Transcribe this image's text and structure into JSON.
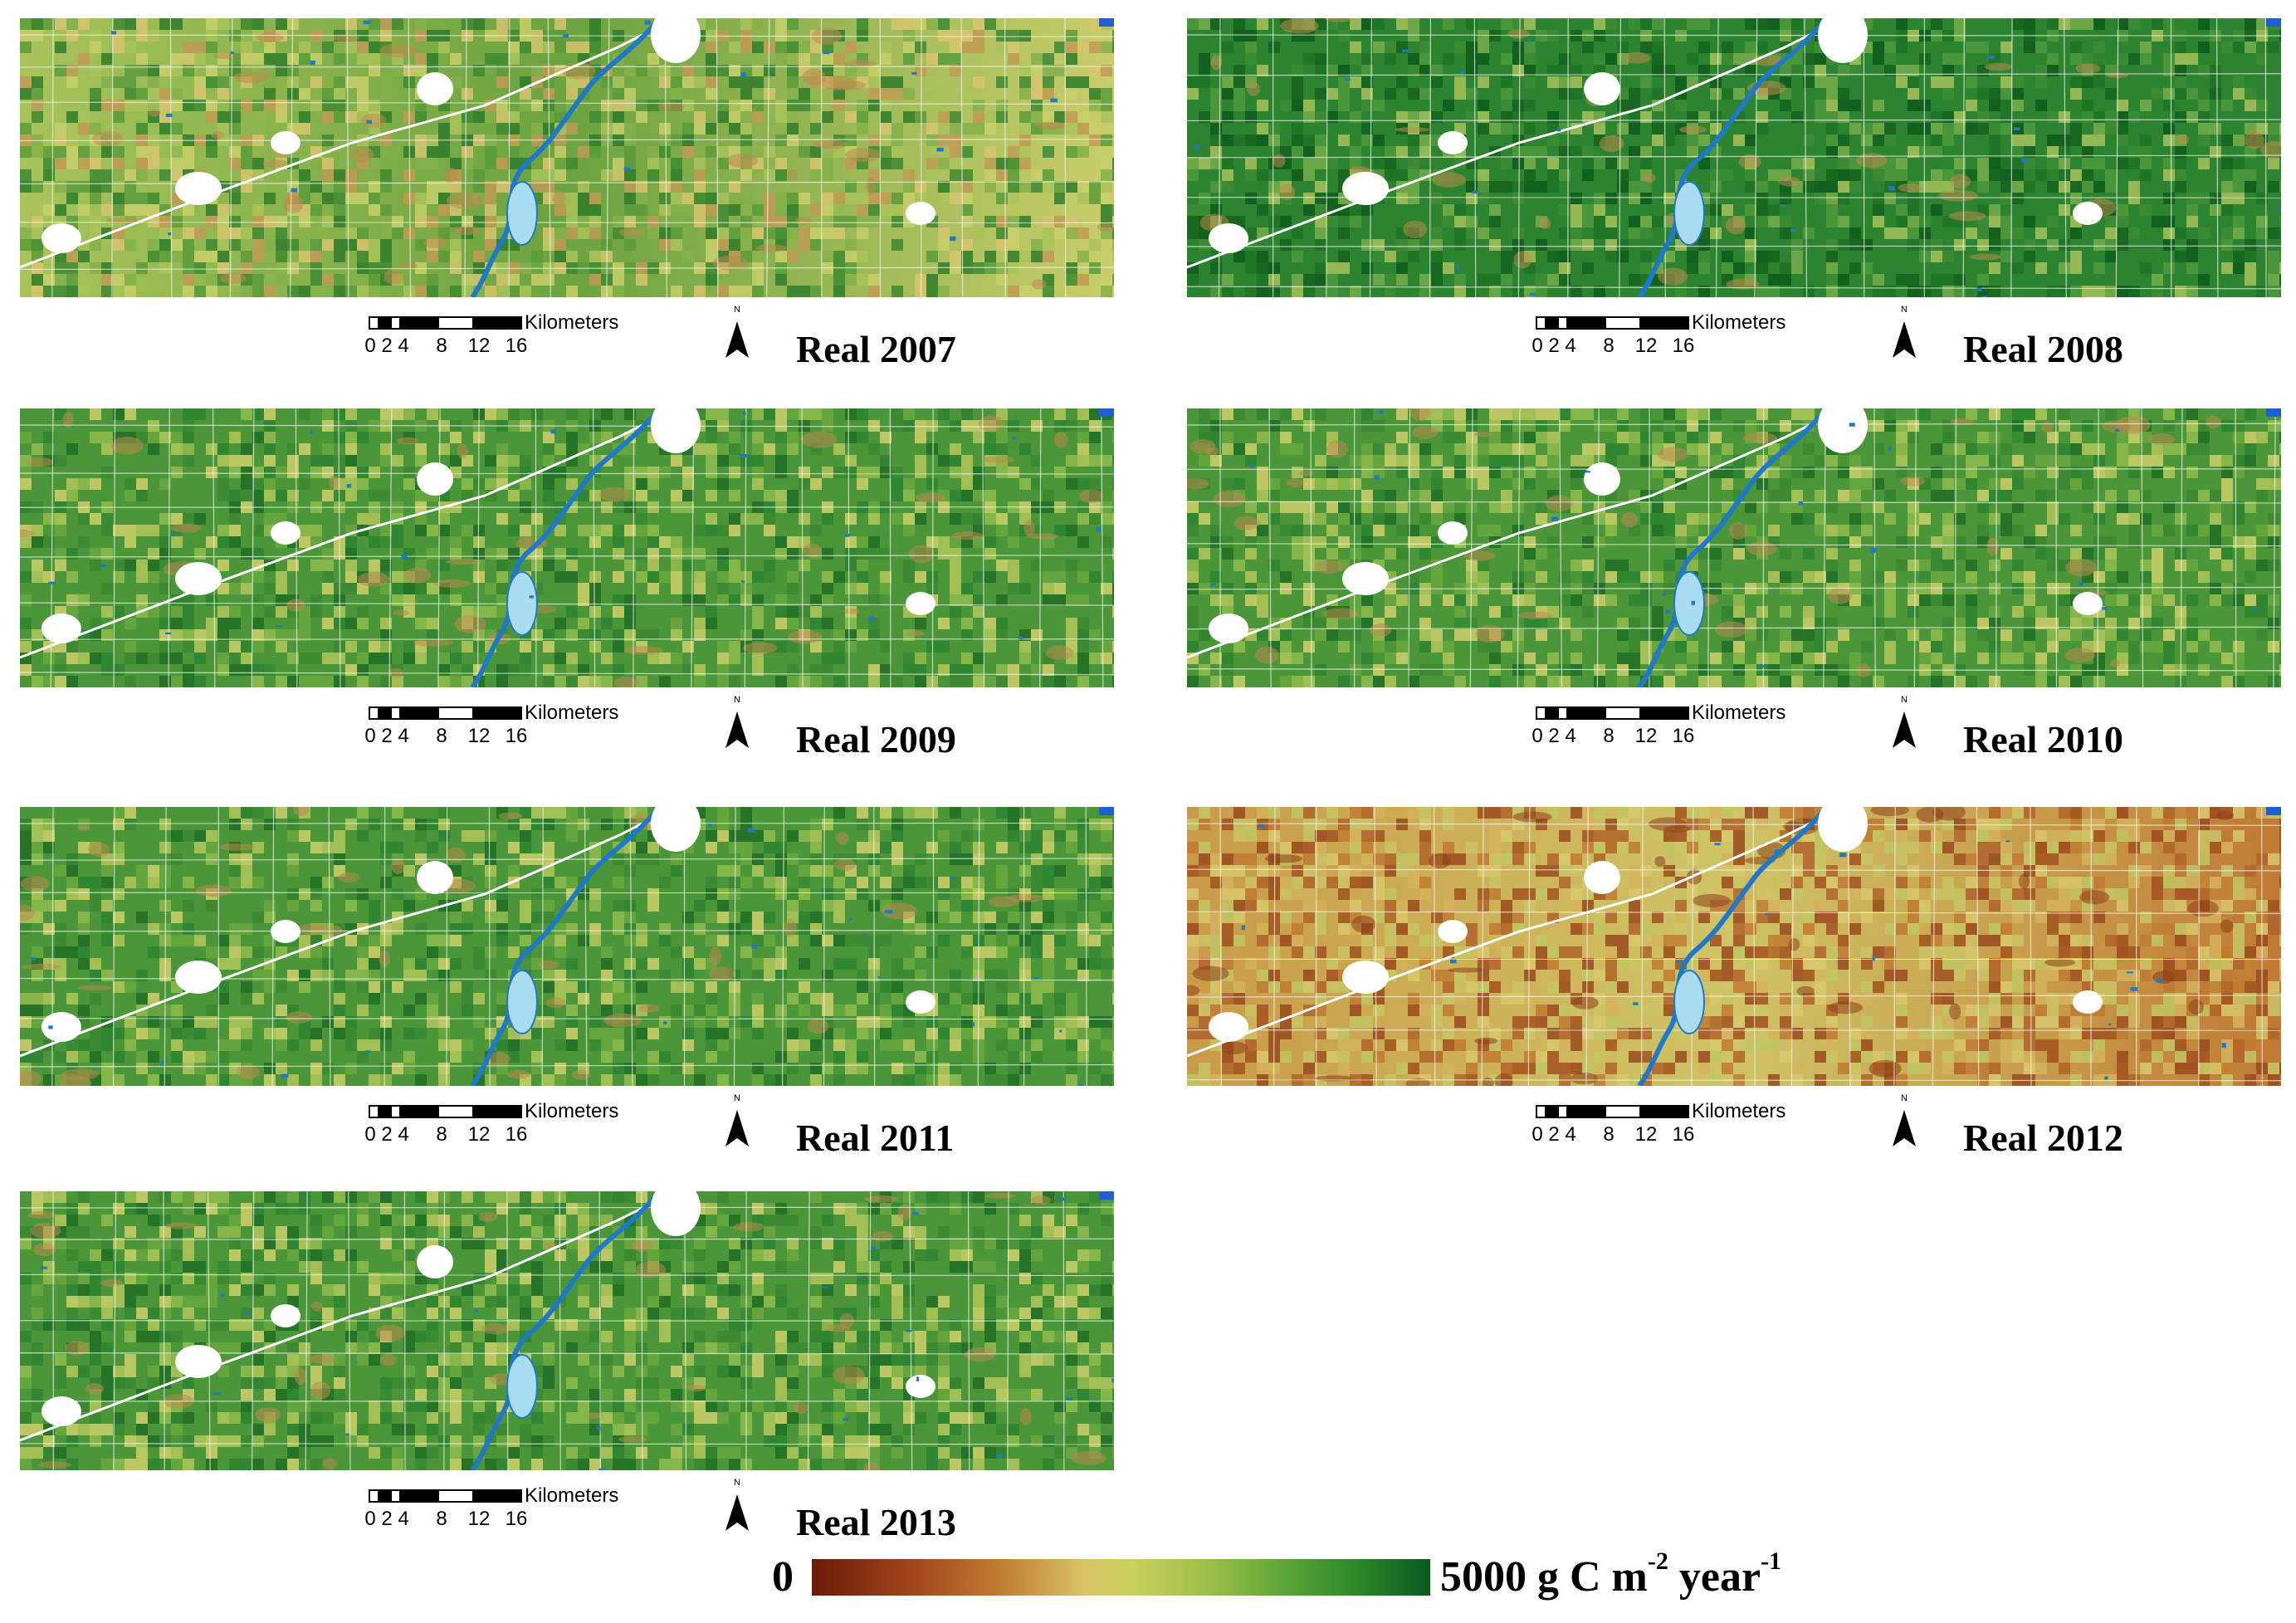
{
  "figure": {
    "panels": [
      {
        "title": "Real 2007",
        "scheme": "mixed"
      },
      {
        "title": "Real 2008",
        "scheme": "dark"
      },
      {
        "title": "Real 2009",
        "scheme": "green"
      },
      {
        "title": "Real 2010",
        "scheme": "green"
      },
      {
        "title": "Real 2011",
        "scheme": "green"
      },
      {
        "title": "Real 2012",
        "scheme": "drought"
      },
      {
        "title": "Real 2013",
        "scheme": "green"
      }
    ],
    "scalebar": {
      "units": "Kilometers",
      "ticks": [
        "0",
        "2",
        "4",
        "8",
        "12",
        "16"
      ]
    },
    "north_label": "N",
    "legend": {
      "min_label": "0",
      "max_label": "5000 g C m",
      "unit_exp1": "-2",
      "unit_mid": " year",
      "unit_exp2": "-1",
      "colors": [
        "#6a1b08",
        "#a0451a",
        "#c07a32",
        "#d9c365",
        "#c7d05a",
        "#9dc047",
        "#5ea637",
        "#2c8a2a",
        "#0b5a1e"
      ]
    }
  }
}
